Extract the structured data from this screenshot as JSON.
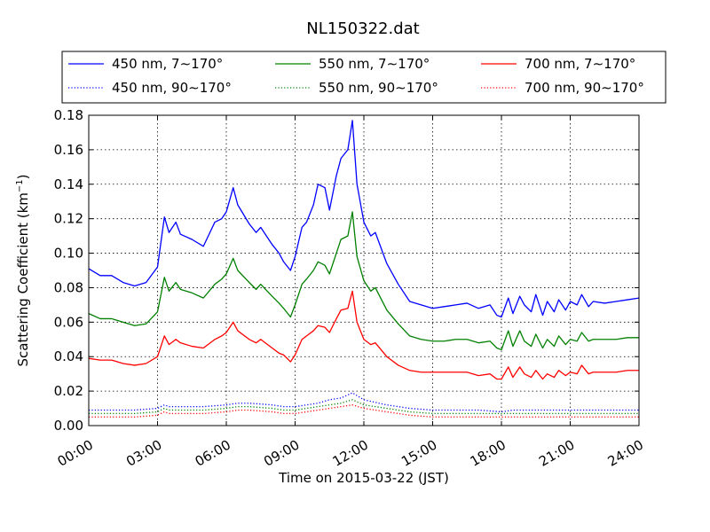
{
  "chart_data": {
    "type": "line",
    "title": "NL150322.dat",
    "xlabel": "Time on 2015-03-22 (JST)",
    "ylabel_main": "Scattering Coefficient (km",
    "ylabel_sup": "−1",
    "ylabel_end": ")",
    "xlim": [
      0,
      24
    ],
    "ylim": [
      0,
      0.18
    ],
    "xticks": [
      0,
      3,
      6,
      9,
      12,
      15,
      18,
      21,
      24
    ],
    "xtick_labels": [
      "00:00",
      "03:00",
      "06:00",
      "09:00",
      "12:00",
      "15:00",
      "18:00",
      "21:00",
      "24:00"
    ],
    "yticks": [
      0,
      0.02,
      0.04,
      0.06,
      0.08,
      0.1,
      0.12,
      0.14,
      0.16,
      0.18
    ],
    "ytick_labels": [
      "0.00",
      "0.02",
      "0.04",
      "0.06",
      "0.08",
      "0.10",
      "0.12",
      "0.14",
      "0.16",
      "0.18"
    ],
    "grid": true,
    "legend_placement": "top",
    "series": [
      {
        "name": "450 nm, 7∼170°",
        "color": "#0000ff",
        "style": "solid",
        "x": [
          0,
          0.5,
          1,
          1.5,
          2,
          2.5,
          3,
          3.3,
          3.5,
          3.8,
          4,
          4.5,
          5,
          5.5,
          5.8,
          6,
          6.3,
          6.5,
          7,
          7.3,
          7.5,
          8,
          8.3,
          8.5,
          8.8,
          9,
          9.3,
          9.5,
          9.8,
          10,
          10.3,
          10.5,
          10.8,
          11,
          11.3,
          11.5,
          11.7,
          12,
          12.3,
          12.5,
          13,
          13.5,
          14,
          14.5,
          15,
          15.5,
          16,
          16.5,
          17,
          17.5,
          17.8,
          18,
          18.3,
          18.5,
          18.8,
          19,
          19.3,
          19.5,
          19.8,
          20,
          20.3,
          20.5,
          20.8,
          21,
          21.3,
          21.5,
          21.8,
          22,
          22.5,
          23,
          23.5,
          24
        ],
        "y": [
          0.091,
          0.087,
          0.087,
          0.083,
          0.081,
          0.083,
          0.092,
          0.121,
          0.112,
          0.118,
          0.111,
          0.108,
          0.104,
          0.118,
          0.12,
          0.124,
          0.138,
          0.128,
          0.117,
          0.112,
          0.115,
          0.105,
          0.1,
          0.095,
          0.09,
          0.098,
          0.115,
          0.118,
          0.128,
          0.14,
          0.138,
          0.125,
          0.145,
          0.155,
          0.16,
          0.177,
          0.14,
          0.118,
          0.11,
          0.112,
          0.094,
          0.082,
          0.072,
          0.07,
          0.068,
          0.069,
          0.07,
          0.071,
          0.068,
          0.07,
          0.064,
          0.063,
          0.074,
          0.065,
          0.075,
          0.07,
          0.066,
          0.076,
          0.064,
          0.072,
          0.066,
          0.073,
          0.067,
          0.072,
          0.07,
          0.076,
          0.069,
          0.072,
          0.071,
          0.072,
          0.073,
          0.074
        ]
      },
      {
        "name": "550 nm, 7∼170°",
        "color": "#008000",
        "style": "solid",
        "x": [
          0,
          0.5,
          1,
          1.5,
          2,
          2.5,
          3,
          3.3,
          3.5,
          3.8,
          4,
          4.5,
          5,
          5.5,
          5.8,
          6,
          6.3,
          6.5,
          7,
          7.3,
          7.5,
          8,
          8.3,
          8.5,
          8.8,
          9,
          9.3,
          9.5,
          9.8,
          10,
          10.3,
          10.5,
          10.8,
          11,
          11.3,
          11.5,
          11.7,
          12,
          12.3,
          12.5,
          13,
          13.5,
          14,
          14.5,
          15,
          15.5,
          16,
          16.5,
          17,
          17.5,
          17.8,
          18,
          18.3,
          18.5,
          18.8,
          19,
          19.3,
          19.5,
          19.8,
          20,
          20.3,
          20.5,
          20.8,
          21,
          21.3,
          21.5,
          21.8,
          22,
          22.5,
          23,
          23.5,
          24
        ],
        "y": [
          0.065,
          0.062,
          0.062,
          0.06,
          0.058,
          0.059,
          0.066,
          0.086,
          0.078,
          0.083,
          0.079,
          0.077,
          0.074,
          0.082,
          0.085,
          0.088,
          0.097,
          0.09,
          0.083,
          0.079,
          0.082,
          0.075,
          0.071,
          0.068,
          0.063,
          0.07,
          0.082,
          0.085,
          0.09,
          0.095,
          0.093,
          0.088,
          0.1,
          0.108,
          0.11,
          0.124,
          0.098,
          0.084,
          0.078,
          0.08,
          0.067,
          0.059,
          0.052,
          0.05,
          0.049,
          0.049,
          0.05,
          0.05,
          0.048,
          0.049,
          0.045,
          0.044,
          0.055,
          0.046,
          0.055,
          0.049,
          0.046,
          0.053,
          0.045,
          0.05,
          0.046,
          0.052,
          0.047,
          0.05,
          0.049,
          0.054,
          0.049,
          0.05,
          0.05,
          0.05,
          0.051,
          0.051
        ]
      },
      {
        "name": "700 nm, 7∼170°",
        "color": "#ff0000",
        "style": "solid",
        "x": [
          0,
          0.5,
          1,
          1.5,
          2,
          2.5,
          3,
          3.3,
          3.5,
          3.8,
          4,
          4.5,
          5,
          5.5,
          5.8,
          6,
          6.3,
          6.5,
          7,
          7.3,
          7.5,
          8,
          8.3,
          8.5,
          8.8,
          9,
          9.3,
          9.5,
          9.8,
          10,
          10.3,
          10.5,
          10.8,
          11,
          11.3,
          11.5,
          11.7,
          12,
          12.3,
          12.5,
          13,
          13.5,
          14,
          14.5,
          15,
          15.5,
          16,
          16.5,
          17,
          17.5,
          17.8,
          18,
          18.3,
          18.5,
          18.8,
          19,
          19.3,
          19.5,
          19.8,
          20,
          20.3,
          20.5,
          20.8,
          21,
          21.3,
          21.5,
          21.8,
          22,
          22.5,
          23,
          23.5,
          24
        ],
        "y": [
          0.039,
          0.038,
          0.038,
          0.036,
          0.035,
          0.036,
          0.04,
          0.052,
          0.047,
          0.05,
          0.048,
          0.046,
          0.045,
          0.05,
          0.052,
          0.054,
          0.06,
          0.055,
          0.05,
          0.048,
          0.05,
          0.045,
          0.042,
          0.041,
          0.037,
          0.041,
          0.05,
          0.052,
          0.055,
          0.058,
          0.057,
          0.054,
          0.062,
          0.067,
          0.068,
          0.078,
          0.06,
          0.05,
          0.047,
          0.048,
          0.04,
          0.035,
          0.032,
          0.031,
          0.031,
          0.031,
          0.031,
          0.031,
          0.029,
          0.03,
          0.027,
          0.027,
          0.034,
          0.028,
          0.034,
          0.03,
          0.028,
          0.032,
          0.027,
          0.03,
          0.028,
          0.032,
          0.029,
          0.031,
          0.03,
          0.035,
          0.03,
          0.031,
          0.031,
          0.031,
          0.032,
          0.032
        ]
      },
      {
        "name": "450 nm, 90∼170°",
        "color": "#0000ff",
        "style": "dotted",
        "x": [
          0,
          1,
          2,
          3,
          3.3,
          3.5,
          4,
          5,
          6,
          6.5,
          7,
          8,
          8.5,
          9,
          10,
          10.5,
          11,
          11.5,
          12,
          13,
          14,
          15,
          16,
          17,
          18,
          18.5,
          19,
          20,
          21,
          22,
          23,
          24
        ],
        "y": [
          0.009,
          0.009,
          0.009,
          0.01,
          0.012,
          0.011,
          0.011,
          0.011,
          0.012,
          0.013,
          0.013,
          0.012,
          0.011,
          0.011,
          0.013,
          0.015,
          0.016,
          0.019,
          0.015,
          0.012,
          0.01,
          0.009,
          0.009,
          0.009,
          0.008,
          0.009,
          0.009,
          0.009,
          0.009,
          0.009,
          0.009,
          0.009
        ]
      },
      {
        "name": "550 nm, 90∼170°",
        "color": "#008000",
        "style": "dotted",
        "x": [
          0,
          1,
          2,
          3,
          3.3,
          3.5,
          4,
          5,
          6,
          6.5,
          7,
          8,
          8.5,
          9,
          10,
          10.5,
          11,
          11.5,
          12,
          13,
          14,
          15,
          16,
          17,
          18,
          18.5,
          19,
          20,
          21,
          22,
          23,
          24
        ],
        "y": [
          0.007,
          0.007,
          0.007,
          0.008,
          0.01,
          0.009,
          0.009,
          0.009,
          0.01,
          0.011,
          0.011,
          0.01,
          0.009,
          0.009,
          0.011,
          0.012,
          0.013,
          0.015,
          0.012,
          0.01,
          0.008,
          0.007,
          0.007,
          0.007,
          0.007,
          0.007,
          0.007,
          0.007,
          0.007,
          0.007,
          0.007,
          0.007
        ]
      },
      {
        "name": "700 nm, 90∼170°",
        "color": "#ff0000",
        "style": "dotted",
        "x": [
          0,
          1,
          2,
          3,
          3.3,
          3.5,
          4,
          5,
          6,
          6.5,
          7,
          8,
          8.5,
          9,
          10,
          10.5,
          11,
          11.5,
          12,
          13,
          14,
          15,
          16,
          17,
          18,
          18.5,
          19,
          20,
          21,
          22,
          23,
          24
        ],
        "y": [
          0.005,
          0.005,
          0.005,
          0.006,
          0.008,
          0.007,
          0.007,
          0.007,
          0.008,
          0.009,
          0.009,
          0.008,
          0.007,
          0.007,
          0.009,
          0.01,
          0.011,
          0.012,
          0.01,
          0.008,
          0.006,
          0.005,
          0.005,
          0.005,
          0.005,
          0.005,
          0.005,
          0.005,
          0.005,
          0.005,
          0.005,
          0.005
        ]
      }
    ]
  }
}
